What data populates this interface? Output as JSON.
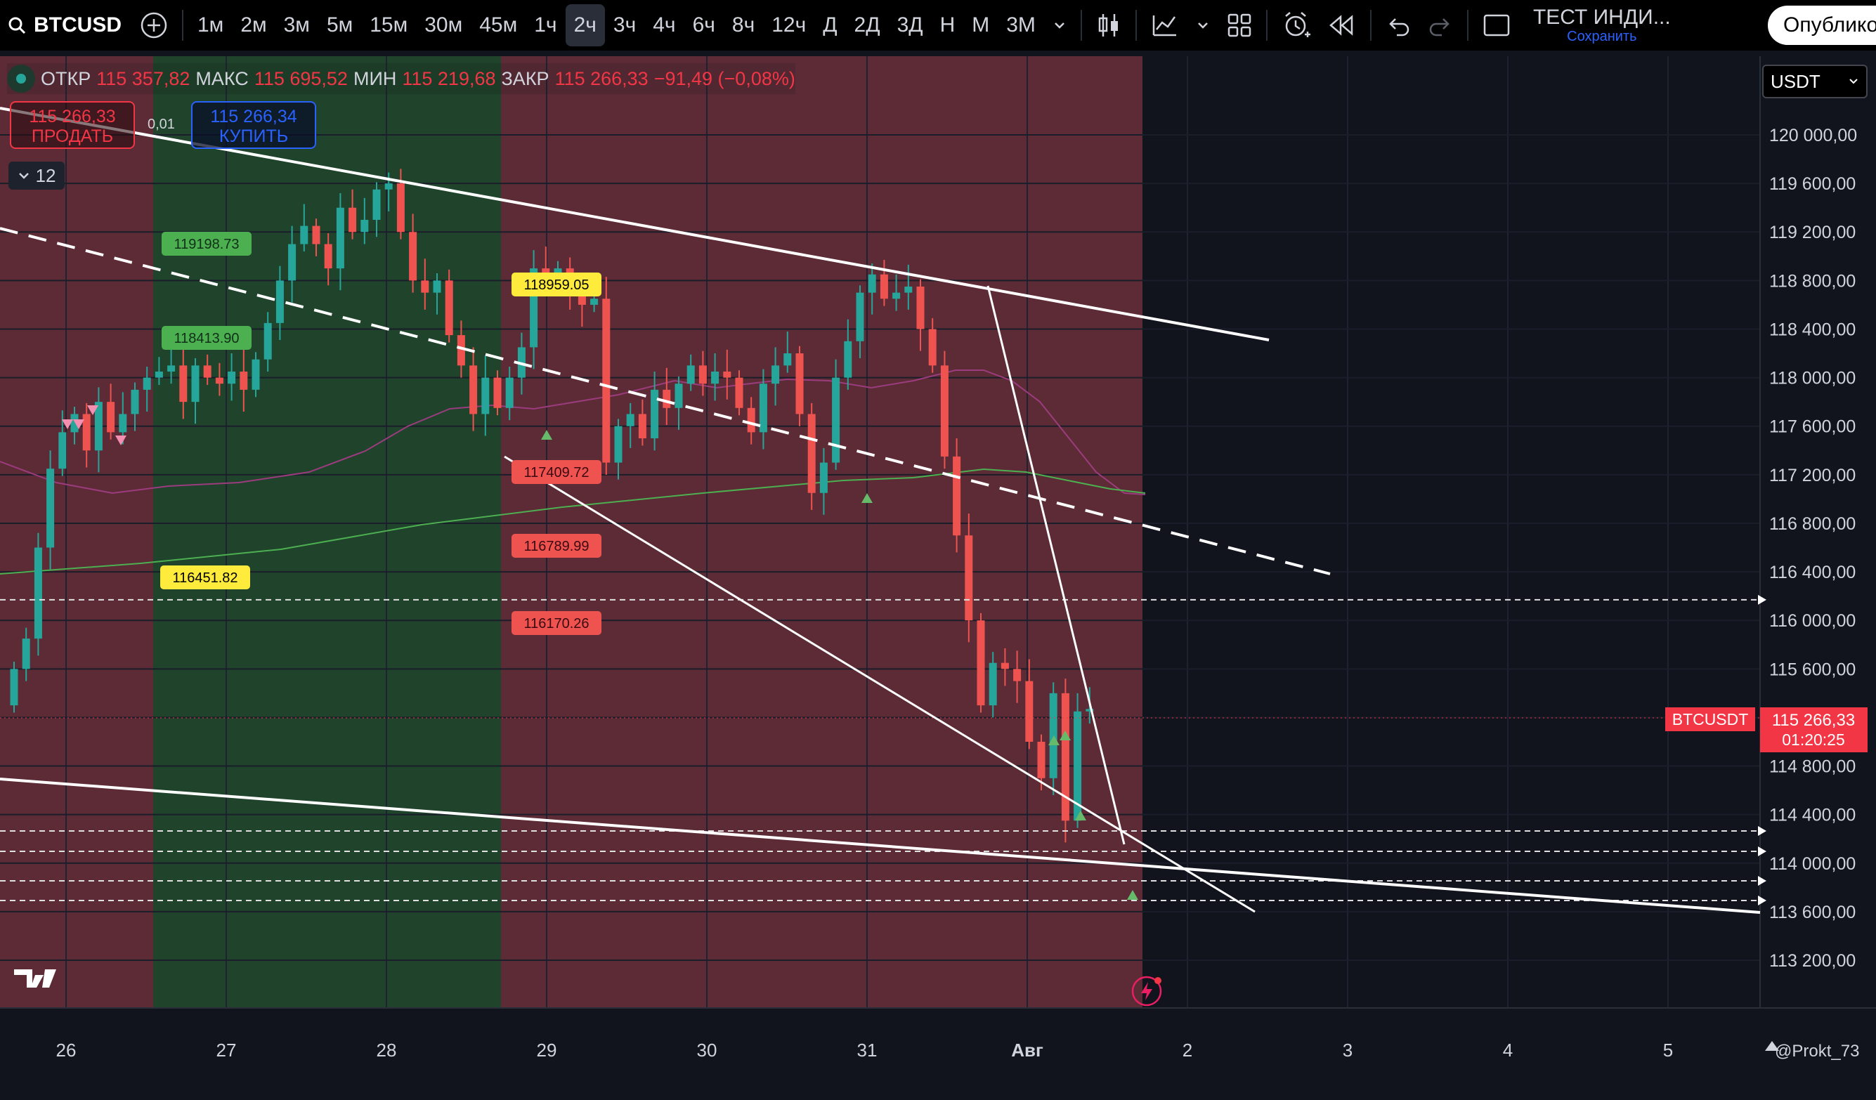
{
  "toolbar": {
    "symbol": "BTCUSD",
    "intervals": [
      "1м",
      "2м",
      "3м",
      "5м",
      "15м",
      "30м",
      "45м",
      "1ч",
      "2ч",
      "3ч",
      "4ч",
      "6ч",
      "8ч",
      "12ч",
      "Д",
      "2Д",
      "3Д",
      "Н",
      "М",
      "3М"
    ],
    "active_interval": "2ч",
    "indicator_title": "ТЕСТ ИНДИ...",
    "save_label": "Сохранить",
    "publish_label": "Опублико"
  },
  "ohlc": {
    "open_label": "ОТКР",
    "open": "115 357,82",
    "high_label": "МАКС",
    "high": "115 695,52",
    "low_label": "МИН",
    "low": "115 219,68",
    "close_label": "ЗАКР",
    "close": "115 266,33",
    "change": "−91,49 (−0,08%)"
  },
  "trade": {
    "sell_price": "115 266,33",
    "sell_label": "ПРОДАТЬ",
    "buy_price": "115 266,34",
    "buy_label": "КУПИТЬ",
    "spread": "0,01"
  },
  "collapse_count": "12",
  "currency": "USDT",
  "price_axis": [
    "120 000,00",
    "119 600,00",
    "119 200,00",
    "118 800,00",
    "118 400,00",
    "118 000,00",
    "117 600,00",
    "117 200,00",
    "116 800,00",
    "116 400,00",
    "116 000,00",
    "115 600,00",
    "114 800,00",
    "114 400,00",
    "114 000,00",
    "113 600,00",
    "113 200,00"
  ],
  "time_axis": [
    "26",
    "27",
    "28",
    "29",
    "30",
    "31",
    "Авг",
    "2",
    "3",
    "4",
    "5"
  ],
  "last_price": {
    "symbol": "BTCUSDT",
    "price": "115 266,33",
    "countdown": "01:20:25"
  },
  "level_labels": [
    "119198.73",
    "118413.90",
    "118959.05",
    "117409.72",
    "116789.99",
    "116451.82",
    "116170.26"
  ],
  "watermark": "@Prokt_73",
  "colors": {
    "up": "#26a69a",
    "down": "#ef5350",
    "bg_red": "#5c2b35",
    "bg_green": "#1f432b",
    "bg": "#131722",
    "accent": "#2962ff"
  }
}
